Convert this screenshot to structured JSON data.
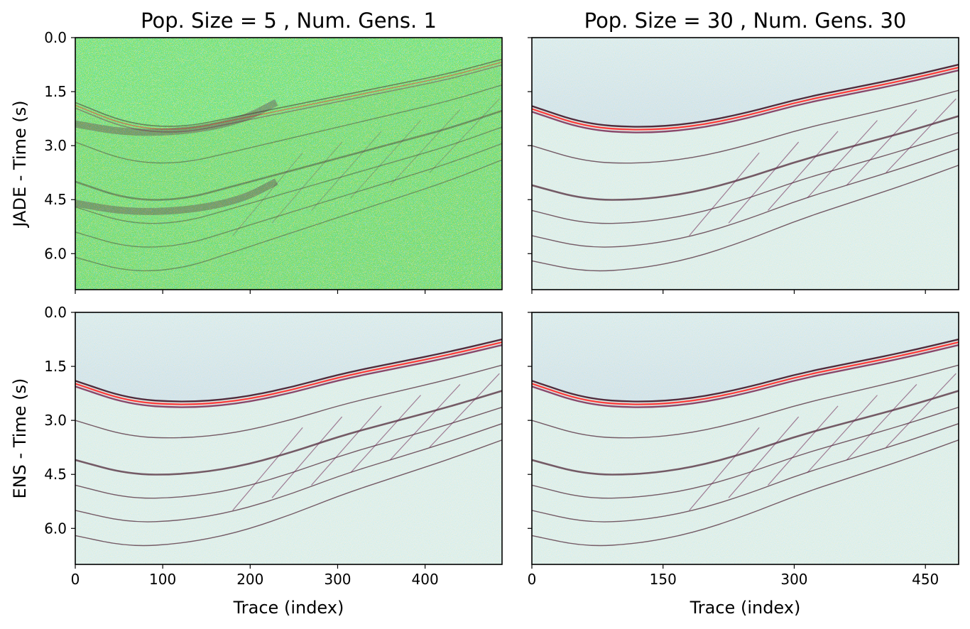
{
  "figure": {
    "colormap": {
      "negative": "#1a1aff",
      "zero": "#ffffff",
      "positive": "#ff2020",
      "dark": "#3a0a1f"
    }
  },
  "chart_data": [
    {
      "type": "heatmap",
      "id": "p00",
      "title": "Pop. Size = 5 , Num. Gens. 1",
      "ylabel": "JADE - Time (s)",
      "xlabel": "",
      "xlim": [
        0,
        488
      ],
      "ylim": [
        7.0,
        0.0
      ],
      "xticks": [
        0,
        100,
        200,
        300,
        400
      ],
      "yticks": [
        0.0,
        1.5,
        3.0,
        4.5,
        6.0
      ],
      "show_xticklabels": false,
      "show_yticklabels": true,
      "style": "noisy",
      "reflectors_time_s": [
        2.4,
        4.6
      ],
      "seafloor_time_s": [
        1.8,
        2.4,
        2.5,
        2.2,
        1.9,
        1.6,
        1.3,
        1.0,
        0.6
      ]
    },
    {
      "type": "heatmap",
      "id": "p01",
      "title": "Pop. Size = 30 , Num. Gens. 30",
      "ylabel": "",
      "xlabel": "",
      "xlim": [
        0,
        488
      ],
      "ylim": [
        7.0,
        0.0
      ],
      "xticks": [
        0,
        150,
        300,
        450
      ],
      "yticks": [
        0.0,
        1.5,
        3.0,
        4.5,
        6.0
      ],
      "show_xticklabels": false,
      "show_yticklabels": false,
      "style": "clean",
      "seafloor_time_s": [
        1.9,
        2.4,
        2.5,
        2.4,
        2.1,
        1.7,
        1.4,
        1.1,
        0.75
      ]
    },
    {
      "type": "heatmap",
      "id": "p10",
      "title": "",
      "ylabel": "ENS - Time (s)",
      "xlabel": "Trace (index)",
      "xlim": [
        0,
        488
      ],
      "ylim": [
        7.0,
        0.0
      ],
      "xticks": [
        0,
        100,
        200,
        300,
        400
      ],
      "yticks": [
        0.0,
        1.5,
        3.0,
        4.5,
        6.0
      ],
      "show_xticklabels": true,
      "show_yticklabels": true,
      "style": "clean",
      "seafloor_time_s": [
        1.9,
        2.4,
        2.5,
        2.4,
        2.1,
        1.7,
        1.4,
        1.1,
        0.75
      ]
    },
    {
      "type": "heatmap",
      "id": "p11",
      "title": "",
      "ylabel": "",
      "xlabel": "Trace (index)",
      "xlim": [
        0,
        488
      ],
      "ylim": [
        7.0,
        0.0
      ],
      "xticks": [
        0,
        150,
        300,
        450
      ],
      "yticks": [
        0.0,
        1.5,
        3.0,
        4.5,
        6.0
      ],
      "show_xticklabels": true,
      "show_yticklabels": false,
      "style": "clean",
      "seafloor_time_s": [
        1.9,
        2.4,
        2.5,
        2.4,
        2.1,
        1.7,
        1.4,
        1.1,
        0.75
      ]
    }
  ]
}
